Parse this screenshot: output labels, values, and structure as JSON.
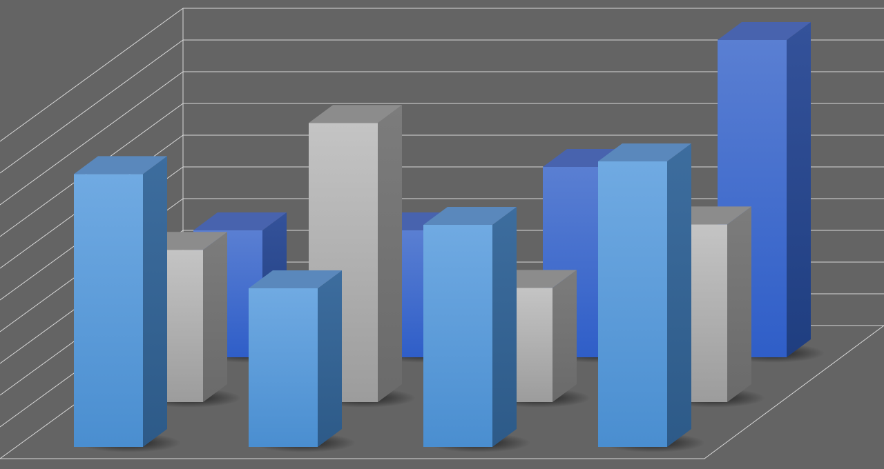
{
  "chart_data": {
    "type": "bar",
    "style": "3d-clustered-rows",
    "title": "",
    "xlabel": "",
    "ylabel": "",
    "ylim": [
      0,
      10
    ],
    "grid": true,
    "legend": "none",
    "categories": [
      "",
      "",
      "",
      ""
    ],
    "series": [
      {
        "color": "#2f5ec8",
        "values": [
          4.0,
          4.0,
          6.0,
          10.0
        ]
      },
      {
        "color": "#b0b0b0",
        "values": [
          4.8,
          8.8,
          3.6,
          5.6
        ]
      },
      {
        "color": "#5a9ee0",
        "values": [
          8.6,
          5.0,
          7.0,
          9.0
        ]
      }
    ]
  },
  "colors": {
    "background": "#646464",
    "gridline": "#d8d8d8"
  }
}
